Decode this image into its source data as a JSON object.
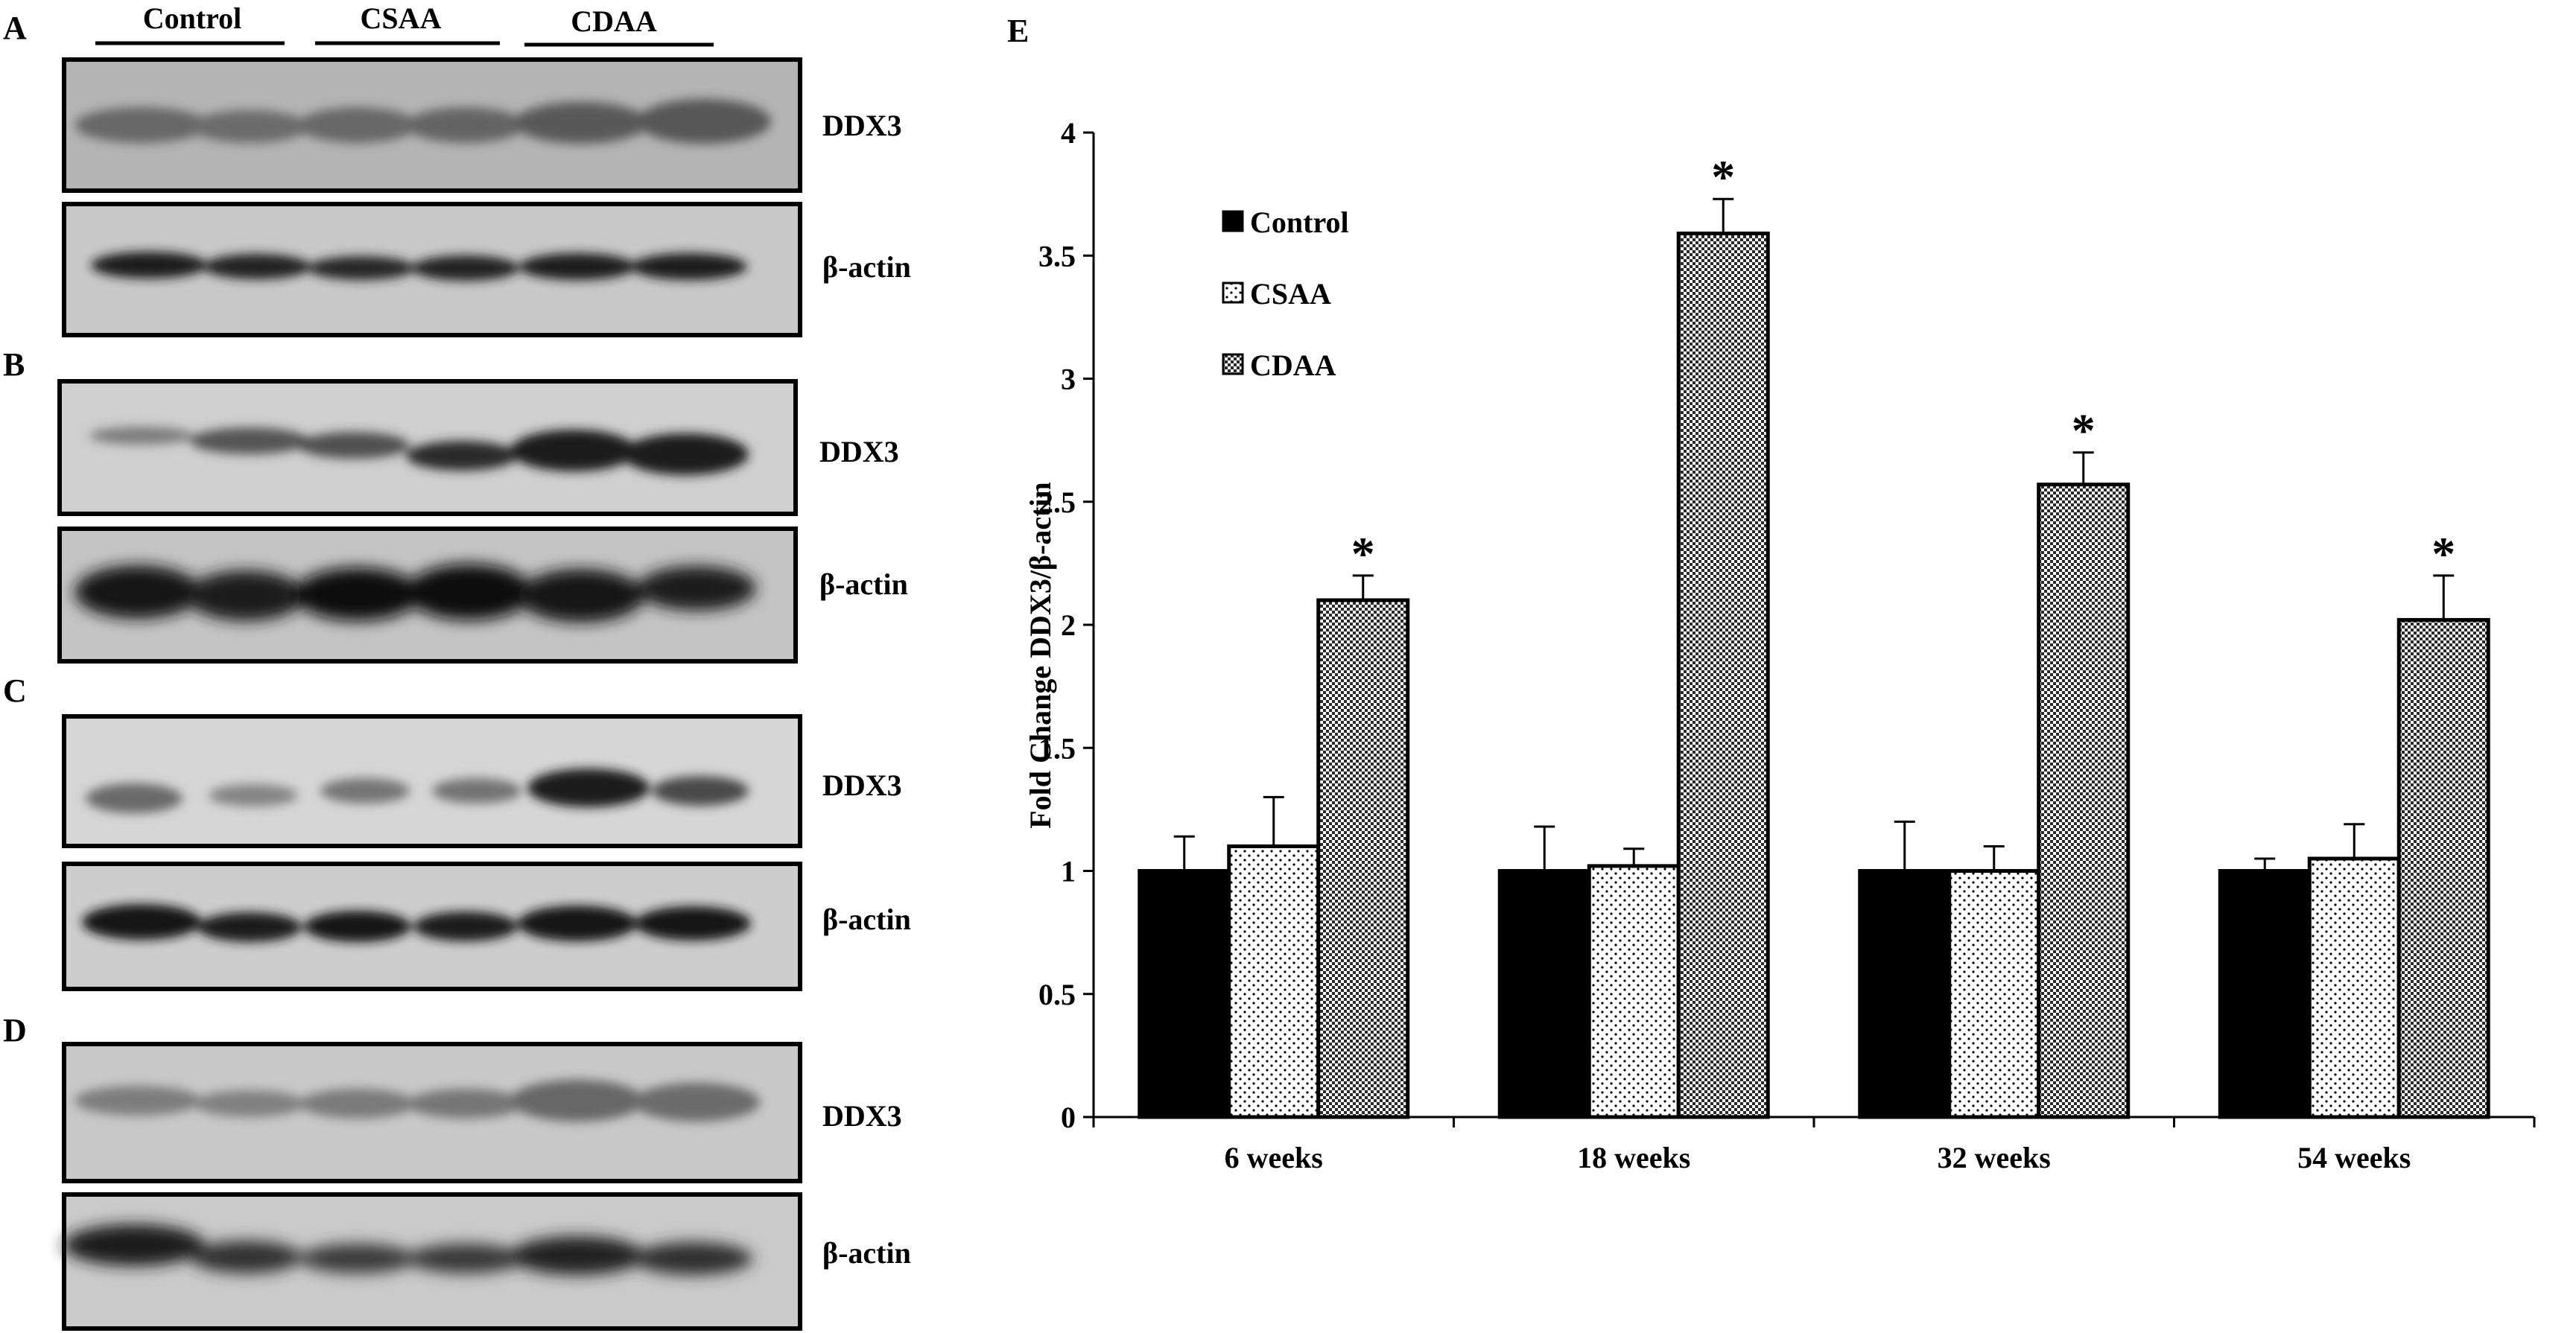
{
  "blots": {
    "group_labels": [
      "Control",
      "CSAA",
      "CDAA"
    ],
    "panels": [
      {
        "letter": "A",
        "top_label": "DDX3",
        "bottom_label": "β-actin"
      },
      {
        "letter": "B",
        "top_label": "DDX3",
        "bottom_label": "β-actin"
      },
      {
        "letter": "C",
        "top_label": "DDX3",
        "bottom_label": "β-actin"
      },
      {
        "letter": "D",
        "top_label": "DDX3",
        "bottom_label": "β-actin"
      }
    ]
  },
  "chart_panel_letter": "E",
  "chart_data": {
    "type": "bar",
    "title": "",
    "xlabel": "",
    "ylabel": "Fold Change DDX3/β-actin",
    "categories": [
      "6 weeks",
      "18 weeks",
      "32 weeks",
      "54 weeks"
    ],
    "ylim": [
      0,
      4
    ],
    "yticks": [
      0,
      0.5,
      1,
      1.5,
      2,
      2.5,
      3,
      3.5,
      4
    ],
    "series": [
      {
        "name": "Control",
        "pattern": "solid",
        "color": "#000000",
        "values": [
          1.0,
          1.0,
          1.0,
          1.0
        ],
        "errors": [
          0.14,
          0.18,
          0.2,
          0.05
        ]
      },
      {
        "name": "CSAA",
        "pattern": "dots",
        "color": "#ffffff",
        "values": [
          1.1,
          1.02,
          1.0,
          1.05
        ],
        "errors": [
          0.2,
          0.07,
          0.1,
          0.14
        ]
      },
      {
        "name": "CDAA",
        "pattern": "checker",
        "color": "#888888",
        "values": [
          2.1,
          3.59,
          2.57,
          2.02
        ],
        "errors": [
          0.1,
          0.14,
          0.13,
          0.18
        ]
      }
    ],
    "significance_marker": "*",
    "significant": [
      [
        false,
        false,
        true
      ],
      [
        false,
        false,
        true
      ],
      [
        false,
        false,
        true
      ],
      [
        false,
        false,
        true
      ]
    ],
    "legend_position": "top-left",
    "grid": false
  }
}
